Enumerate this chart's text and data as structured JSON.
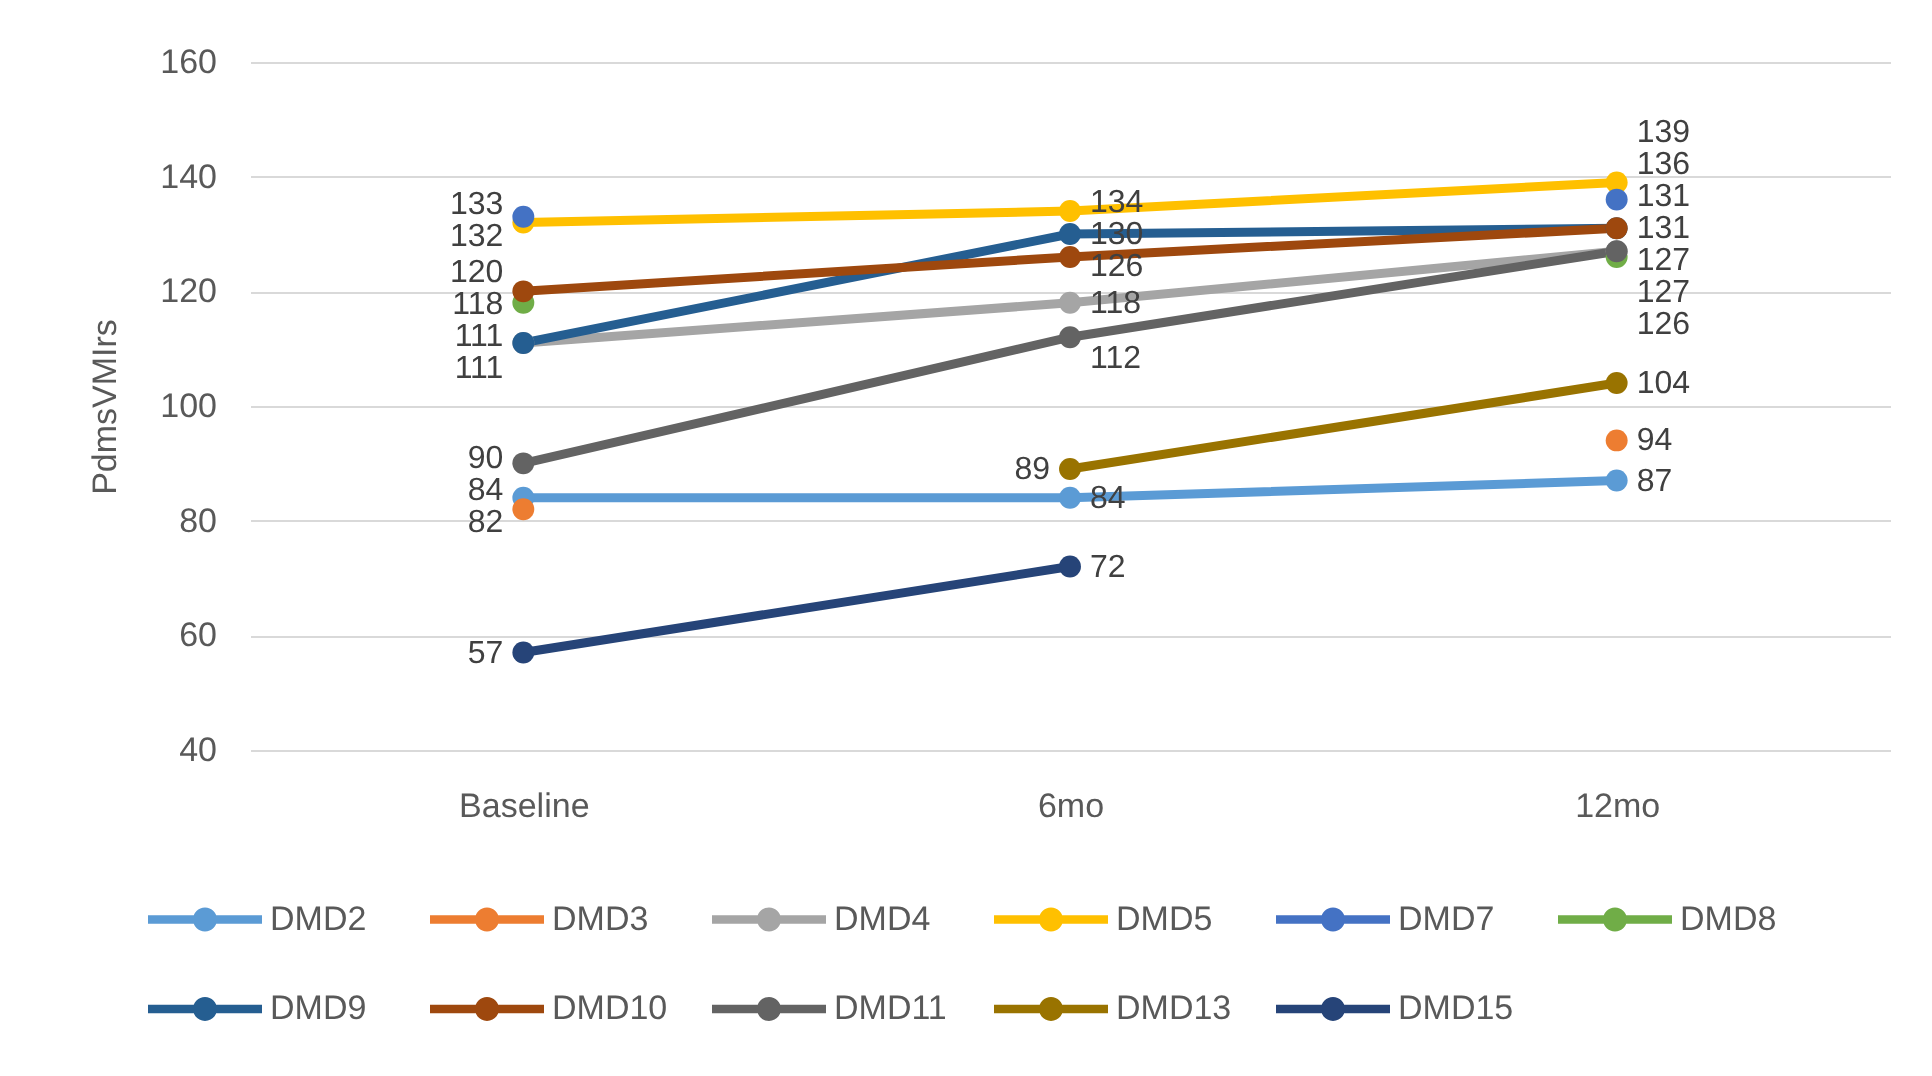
{
  "chart_data": {
    "type": "line",
    "ylabel": "PdmsVMIrs",
    "categories": [
      "Baseline",
      "6mo",
      "12mo"
    ],
    "series": [
      {
        "name": "DMD2",
        "color": "#5b9bd5",
        "values": [
          84,
          84,
          87
        ]
      },
      {
        "name": "DMD3",
        "type": "scatter",
        "color": "#ed7d31",
        "values": [
          82,
          null,
          94
        ]
      },
      {
        "name": "DMD4",
        "color": "#a5a5a5",
        "values": [
          111,
          118,
          127
        ]
      },
      {
        "name": "DMD5",
        "color": "#ffc000",
        "values": [
          132,
          134,
          139
        ]
      },
      {
        "name": "DMD7",
        "type": "scatter",
        "color": "#4472c4",
        "values": [
          133,
          null,
          136
        ]
      },
      {
        "name": "DMD8",
        "type": "scatter",
        "color": "#70ad47",
        "values": [
          118,
          null,
          126
        ]
      },
      {
        "name": "DMD9",
        "color": "#255e91",
        "values": [
          111,
          130,
          131
        ]
      },
      {
        "name": "DMD10",
        "color": "#9e480e",
        "values": [
          120,
          126,
          131
        ]
      },
      {
        "name": "DMD11",
        "color": "#636363",
        "values": [
          90,
          112,
          127
        ]
      },
      {
        "name": "DMD13",
        "color": "#997300",
        "values": [
          null,
          89,
          104
        ]
      },
      {
        "name": "DMD15",
        "color": "#264478",
        "values": [
          57,
          72,
          null
        ]
      }
    ],
    "ylim": [
      40,
      160
    ],
    "yticks": [
      40,
      60,
      80,
      100,
      120,
      140,
      160
    ],
    "grid": "y",
    "legend": "bottom",
    "marker": "circle",
    "data_labels": true
  }
}
